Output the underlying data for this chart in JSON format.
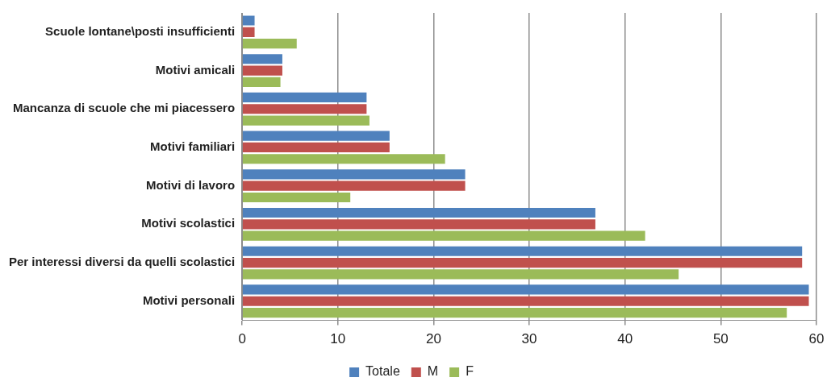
{
  "chart_data": {
    "type": "bar",
    "orientation": "horizontal",
    "categories": [
      "Scuole lontane\\posti insufficienti",
      "Motivi amicali",
      "Mancanza di scuole che mi piacessero",
      "Motivi familiari",
      "Motivi di lavoro",
      "Motivi scolastici",
      "Per interessi diversi da quelli scolastici",
      "Motivi personali"
    ],
    "series": [
      {
        "name": "Totale",
        "color": "#4f81bd",
        "values": [
          1.3,
          4.2,
          13.0,
          15.4,
          23.3,
          36.9,
          58.5,
          59.2
        ]
      },
      {
        "name": "M",
        "color": "#c0504d",
        "values": [
          1.3,
          4.2,
          13.0,
          15.4,
          23.3,
          36.9,
          58.5,
          59.2
        ]
      },
      {
        "name": "F",
        "color": "#9bbb59",
        "values": [
          5.7,
          4.0,
          13.3,
          21.2,
          11.3,
          42.1,
          45.6,
          56.9
        ]
      }
    ],
    "xlim": [
      0,
      60
    ],
    "xticks": [
      0,
      10,
      20,
      30,
      40,
      50,
      60
    ],
    "grid": "x",
    "legend": "bottom"
  }
}
